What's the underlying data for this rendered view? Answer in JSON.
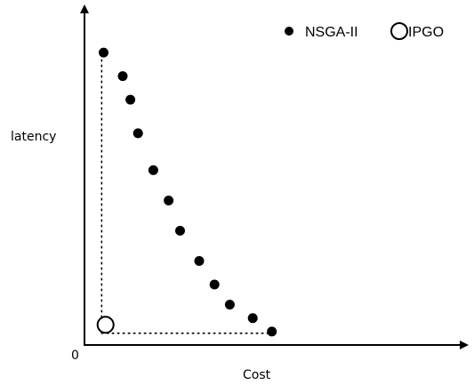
{
  "chart_data": {
    "type": "scatter",
    "title": "",
    "xlabel": "Cost",
    "ylabel": "latency",
    "origin_label": "0",
    "xlim": [
      0,
      10
    ],
    "ylim": [
      0,
      10
    ],
    "grid": false,
    "legend_position": "top-right",
    "series": [
      {
        "name": "NSGA-II",
        "marker": "filled-circle",
        "color": "#000000",
        "points": [
          {
            "x": 0.5,
            "y": 8.7
          },
          {
            "x": 1.0,
            "y": 8.0
          },
          {
            "x": 1.2,
            "y": 7.3
          },
          {
            "x": 1.4,
            "y": 6.3
          },
          {
            "x": 1.8,
            "y": 5.2
          },
          {
            "x": 2.2,
            "y": 4.3
          },
          {
            "x": 2.5,
            "y": 3.4
          },
          {
            "x": 3.0,
            "y": 2.5
          },
          {
            "x": 3.4,
            "y": 1.8
          },
          {
            "x": 3.8,
            "y": 1.2
          },
          {
            "x": 4.4,
            "y": 0.8
          },
          {
            "x": 4.9,
            "y": 0.4
          }
        ]
      },
      {
        "name": "IPGO",
        "marker": "hollow-circle",
        "color": "#000000",
        "points": [
          {
            "x": 0.55,
            "y": 0.6
          }
        ]
      }
    ],
    "guides": {
      "vertical": {
        "x": 0.45,
        "y_from": 0.35,
        "y_to": 8.7
      },
      "horizontal": {
        "y": 0.35,
        "x_from": 0.45,
        "x_to": 4.8
      }
    }
  }
}
